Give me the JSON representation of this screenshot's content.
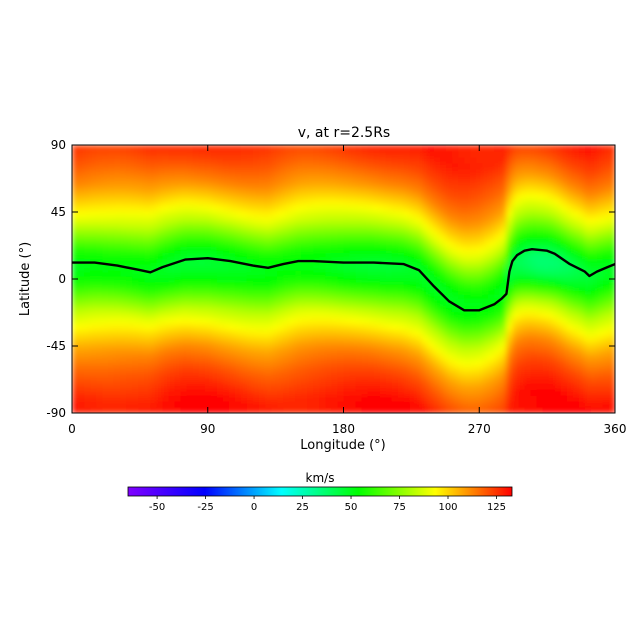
{
  "chart_data": {
    "type": "heatmap",
    "title": "v, at r=2.5Rs",
    "xlabel": "Longitude (°)",
    "ylabel": "Latitude (°)",
    "xlim": [
      0,
      360
    ],
    "ylim": [
      -90,
      90
    ],
    "xticks": [
      0,
      90,
      180,
      270,
      360
    ],
    "yticks": [
      -90,
      -45,
      0,
      45,
      90
    ],
    "xtick_labels": [
      "0",
      "90",
      "180",
      "270",
      "360"
    ],
    "ytick_labels": [
      "-90",
      "-45",
      "0",
      "45",
      "90"
    ],
    "colorbar": {
      "label": "km/s",
      "range": [
        -65,
        133
      ],
      "ticks": [
        -50,
        -25,
        0,
        25,
        50,
        75,
        100,
        125
      ],
      "tick_labels": [
        "-50",
        "-25",
        "0",
        "25",
        "50",
        "75",
        "100",
        "125"
      ],
      "colors": [
        "#8000ff",
        "#0000ff",
        "#00ffff",
        "#00ff00",
        "#ffff00",
        "#ff0000"
      ]
    },
    "field": {
      "description": "speed increases with |latitude|: ~45-55 km/s near the neutral line, ~85 km/s at ±30°, ~125+ km/s at the poles; slow (~35-45 km/s) patch near lon 310, lat 5",
      "profile_offset_lat": [
        0,
        10,
        20,
        30,
        40,
        55,
        70,
        90
      ],
      "profile_speed": [
        48,
        55,
        70,
        85,
        95,
        110,
        120,
        130
      ]
    },
    "neutral_line": {
      "color": "#000000",
      "lon": [
        0,
        15,
        30,
        45,
        52,
        60,
        75,
        90,
        105,
        120,
        130,
        140,
        150,
        160,
        180,
        200,
        220,
        230,
        240,
        250,
        260,
        270,
        280,
        285,
        288,
        290,
        292,
        295,
        300,
        305,
        315,
        320,
        330,
        340,
        343,
        348,
        355,
        360
      ],
      "lat": [
        11,
        11,
        9,
        6,
        4.5,
        8,
        13,
        14,
        12,
        9,
        7.5,
        10,
        12,
        12,
        11,
        11,
        10,
        6,
        -5,
        -15,
        -21,
        -21,
        -17,
        -13,
        -10,
        5,
        12,
        16,
        19,
        20,
        19,
        17,
        10,
        5,
        2,
        5,
        8,
        10
      ]
    }
  }
}
